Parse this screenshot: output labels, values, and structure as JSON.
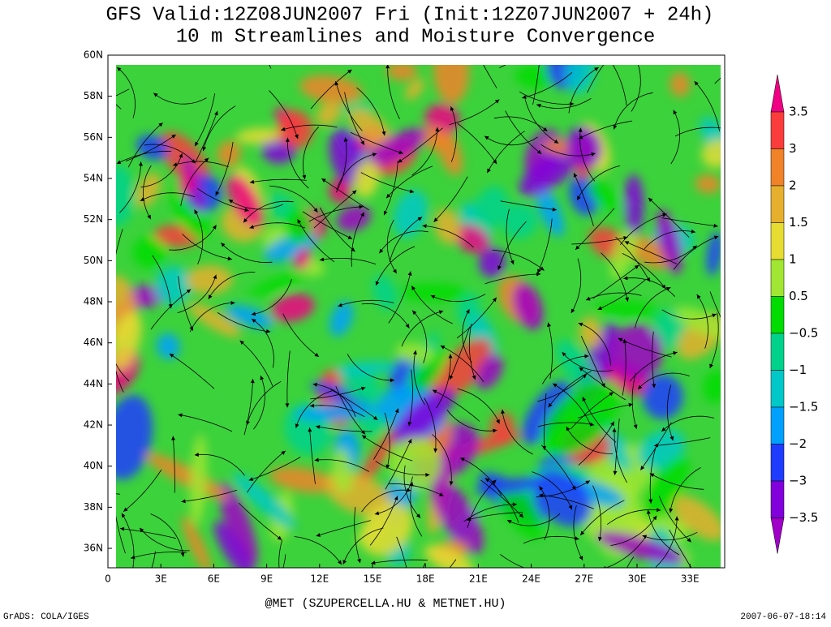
{
  "header": {
    "title": "GFS Valid:12Z08JUN2007 Fri (Init:12Z07JUN2007 + 24h)",
    "subtitle": "10 m Streamlines and Moisture Convergence"
  },
  "axes": {
    "y_labels": [
      "60N",
      "58N",
      "56N",
      "54N",
      "52N",
      "50N",
      "48N",
      "46N",
      "44N",
      "42N",
      "40N",
      "38N",
      "36N"
    ],
    "x_labels": [
      "0",
      "3E",
      "6E",
      "9E",
      "12E",
      "15E",
      "18E",
      "21E",
      "24E",
      "27E",
      "30E",
      "33E"
    ]
  },
  "colorbar": {
    "labels": [
      "3.5",
      "3",
      "2",
      "1.5",
      "1",
      "0.5",
      "−0.5",
      "−1",
      "−1.5",
      "−2",
      "−3",
      "−3.5"
    ],
    "colors": [
      "#f00082",
      "#fa3c3c",
      "#f08228",
      "#e6af2d",
      "#e6dc32",
      "#a0e632",
      "#00dc00",
      "#00d28c",
      "#00c8c8",
      "#00a0ff",
      "#1e3cff",
      "#8200dc",
      "#a000c8"
    ]
  },
  "footer": {
    "credit": "@MET (SZUPERCELLA.HU & METNET.HU)",
    "software": "GrADS: COLA/IGES",
    "timestamp": "2007-06-07-18:14"
  }
}
